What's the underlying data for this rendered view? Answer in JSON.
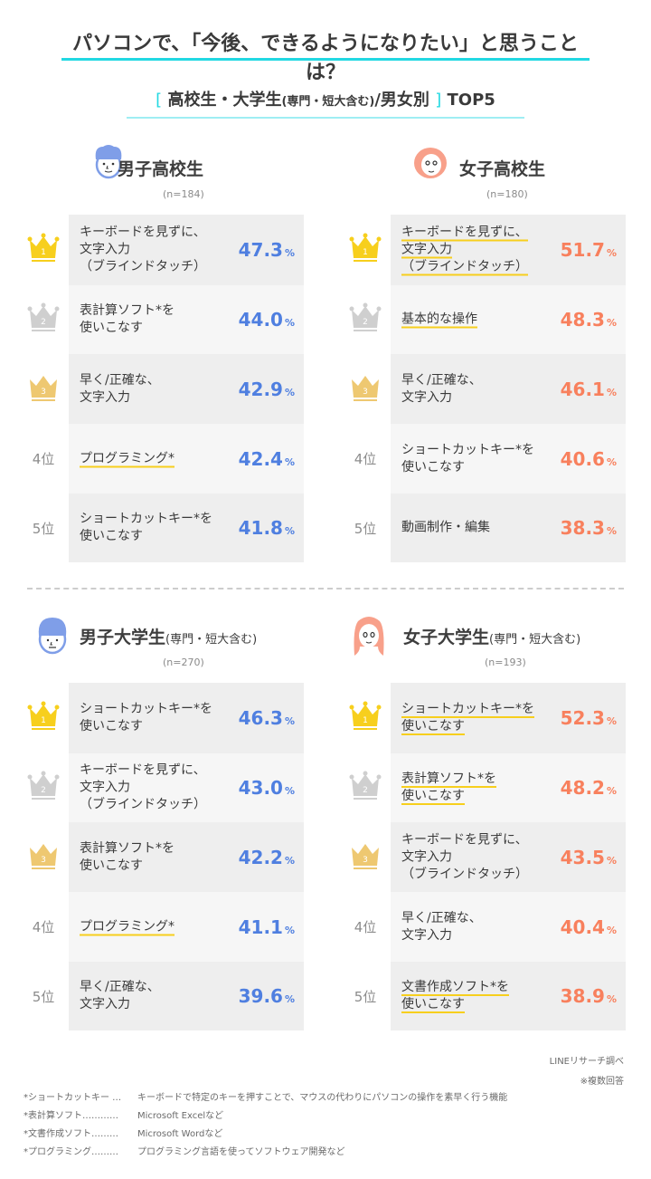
{
  "header": {
    "title": "パソコンで、「今後、できるようになりたい」と思うことは？",
    "subtitle_open": "[",
    "subtitle_main": "高校生・大学生",
    "subtitle_small": "(専門・短大含む)",
    "subtitle_tail": "/男女別",
    "subtitle_close": "]",
    "subtitle_top": "TOP5"
  },
  "rank_labels": [
    "1",
    "2",
    "3",
    "4位",
    "5位"
  ],
  "colors": {
    "accent_cyan": "#22d8e2",
    "male_blue": "#4f7fe0",
    "female_orange": "#f8805d",
    "gold": "#f7cf1d",
    "silver": "#cfcfcf",
    "bronze": "#eec871",
    "underline": "#f7cf1d"
  },
  "panels": {
    "male_hs": {
      "name": "男子高校生",
      "sub": "",
      "n": "(n=184)",
      "items": [
        {
          "rank": 1,
          "label": [
            "キーボードを見ずに、",
            "文字入力",
            "（ブラインドタッチ）"
          ],
          "value": "47.3",
          "unit": "%",
          "underline": false
        },
        {
          "rank": 2,
          "label": [
            "表計算ソフト*を",
            "使いこなす"
          ],
          "value": "44.0",
          "unit": "%",
          "underline": false
        },
        {
          "rank": 3,
          "label": [
            "早く/正確な、",
            "文字入力"
          ],
          "value": "42.9",
          "unit": "%",
          "underline": false
        },
        {
          "rank": 4,
          "label": [
            "プログラミング*"
          ],
          "value": "42.4",
          "unit": "%",
          "underline": true
        },
        {
          "rank": 5,
          "label": [
            "ショートカットキー*を",
            "使いこなす"
          ],
          "value": "41.8",
          "unit": "%",
          "underline": false
        }
      ]
    },
    "female_hs": {
      "name": "女子高校生",
      "sub": "",
      "n": "(n=180)",
      "items": [
        {
          "rank": 1,
          "label": [
            "キーボードを見ずに、",
            "文字入力",
            "（ブラインドタッチ）"
          ],
          "value": "51.7",
          "unit": "%",
          "underline": true
        },
        {
          "rank": 2,
          "label": [
            "基本的な操作"
          ],
          "value": "48.3",
          "unit": "%",
          "underline": true
        },
        {
          "rank": 3,
          "label": [
            "早く/正確な、",
            "文字入力"
          ],
          "value": "46.1",
          "unit": "%",
          "underline": false
        },
        {
          "rank": 4,
          "label": [
            "ショートカットキー*を",
            "使いこなす"
          ],
          "value": "40.6",
          "unit": "%",
          "underline": false
        },
        {
          "rank": 5,
          "label": [
            "動画制作・編集"
          ],
          "value": "38.3",
          "unit": "%",
          "underline": false
        }
      ]
    },
    "male_univ": {
      "name": "男子大学生",
      "sub": "(専門・短大含む)",
      "n": "(n=270)",
      "items": [
        {
          "rank": 1,
          "label": [
            "ショートカットキー*を",
            "使いこなす"
          ],
          "value": "46.3",
          "unit": "%",
          "underline": false
        },
        {
          "rank": 2,
          "label": [
            "キーボードを見ずに、",
            "文字入力",
            "（ブラインドタッチ）"
          ],
          "value": "43.0",
          "unit": "%",
          "underline": false
        },
        {
          "rank": 3,
          "label": [
            "表計算ソフト*を",
            "使いこなす"
          ],
          "value": "42.2",
          "unit": "%",
          "underline": false
        },
        {
          "rank": 4,
          "label": [
            "プログラミング*"
          ],
          "value": "41.1",
          "unit": "%",
          "underline": true
        },
        {
          "rank": 5,
          "label": [
            "早く/正確な、",
            "文字入力"
          ],
          "value": "39.6",
          "unit": "%",
          "underline": false
        }
      ]
    },
    "female_univ": {
      "name": "女子大学生",
      "sub": "(専門・短大含む)",
      "n": "(n=193)",
      "items": [
        {
          "rank": 1,
          "label": [
            "ショートカットキー*を",
            "使いこなす"
          ],
          "value": "52.3",
          "unit": "%",
          "underline": true
        },
        {
          "rank": 2,
          "label": [
            "表計算ソフト*を",
            "使いこなす"
          ],
          "value": "48.2",
          "unit": "%",
          "underline": true
        },
        {
          "rank": 3,
          "label": [
            "キーボードを見ずに、",
            "文字入力",
            "（ブラインドタッチ）"
          ],
          "value": "43.5",
          "unit": "%",
          "underline": false
        },
        {
          "rank": 4,
          "label": [
            "早く/正確な、",
            "文字入力"
          ],
          "value": "40.4",
          "unit": "%",
          "underline": false
        },
        {
          "rank": 5,
          "label": [
            "文書作成ソフト*を",
            "使いこなす"
          ],
          "value": "38.9",
          "unit": "%",
          "underline": true
        }
      ]
    }
  },
  "footer": {
    "source": "LINEリサーチ調べ",
    "multi": "※複数回答",
    "notes": [
      {
        "key": "*ショートカットキー …",
        "desc": "キーボードで特定のキーを押すことで、マウスの代わりにパソコンの操作を素早く行う機能"
      },
      {
        "key": "*表計算ソフト…………",
        "desc": "Microsoft Excelなど"
      },
      {
        "key": "*文書作成ソフト………",
        "desc": "Microsoft Wordなど"
      },
      {
        "key": "*プログラミング………",
        "desc": "プログラミング言語を使ってソフトウェア開発など"
      }
    ]
  },
  "chart_data": [
    {
      "type": "table",
      "title": "男子高校生 (n=184)",
      "categories": [
        "キーボードを見ずに、文字入力（ブラインドタッチ）",
        "表計算ソフト*を使いこなす",
        "早く/正確な、文字入力",
        "プログラミング*",
        "ショートカットキー*を使いこなす"
      ],
      "values": [
        47.3,
        44.0,
        42.9,
        42.4,
        41.8
      ],
      "unit": "%"
    },
    {
      "type": "table",
      "title": "女子高校生 (n=180)",
      "categories": [
        "キーボードを見ずに、文字入力（ブラインドタッチ）",
        "基本的な操作",
        "早く/正確な、文字入力",
        "ショートカットキー*を使いこなす",
        "動画制作・編集"
      ],
      "values": [
        51.7,
        48.3,
        46.1,
        40.6,
        38.3
      ],
      "unit": "%"
    },
    {
      "type": "table",
      "title": "男子大学生(専門・短大含む) (n=270)",
      "categories": [
        "ショートカットキー*を使いこなす",
        "キーボードを見ずに、文字入力（ブラインドタッチ）",
        "表計算ソフト*を使いこなす",
        "プログラミング*",
        "早く/正確な、文字入力"
      ],
      "values": [
        46.3,
        43.0,
        42.2,
        41.1,
        39.6
      ],
      "unit": "%"
    },
    {
      "type": "table",
      "title": "女子大学生(専門・短大含む) (n=193)",
      "categories": [
        "ショートカットキー*を使いこなす",
        "表計算ソフト*を使いこなす",
        "キーボードを見ずに、文字入力（ブラインドタッチ）",
        "早く/正確な、文字入力",
        "文書作成ソフト*を使いこなす"
      ],
      "values": [
        52.3,
        48.2,
        43.5,
        40.4,
        38.9
      ],
      "unit": "%"
    }
  ]
}
